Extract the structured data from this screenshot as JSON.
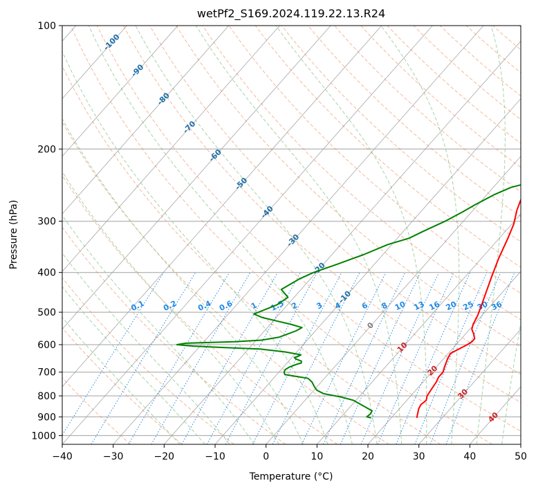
{
  "chart_data": {
    "type": "line",
    "title": "wetPf2_S169.2024.119.22.13.R24",
    "xlabel": "Temperature (°C)",
    "ylabel": "Pressure (hPa)",
    "xlim": [
      -40,
      50
    ],
    "ylim": [
      1050,
      100
    ],
    "yscale": "log",
    "x_ticks": [
      -40,
      -30,
      -20,
      -10,
      0,
      10,
      20,
      30,
      40,
      50
    ],
    "y_ticks": [
      100,
      200,
      300,
      400,
      500,
      600,
      700,
      800,
      900,
      1000
    ],
    "grid": true,
    "series": [
      {
        "color": "#ff0000",
        "points": [
          [
            25,
            905
          ],
          [
            24.6,
            890
          ],
          [
            23.8,
            860
          ],
          [
            23.5,
            840
          ],
          [
            23.8,
            820
          ],
          [
            23.2,
            800
          ],
          [
            22.8,
            760
          ],
          [
            22.6,
            740
          ],
          [
            22.2,
            720
          ],
          [
            22.2,
            700
          ],
          [
            21.6,
            680
          ],
          [
            20.8,
            650
          ],
          [
            20.4,
            630
          ],
          [
            21.3,
            615
          ],
          [
            22.2,
            600
          ],
          [
            22.6,
            590
          ],
          [
            22.6,
            580
          ],
          [
            21.6,
            565
          ],
          [
            20.4,
            550
          ],
          [
            19.8,
            535
          ],
          [
            19.2,
            510
          ],
          [
            18.3,
            485
          ],
          [
            16.5,
            440
          ],
          [
            15.2,
            410
          ],
          [
            13.4,
            370
          ],
          [
            11.7,
            330
          ],
          [
            10.4,
            305
          ],
          [
            8.6,
            282
          ],
          [
            7.3,
            262
          ],
          [
            6.8,
            245
          ],
          [
            6.9,
            228
          ],
          [
            7.1,
            215
          ],
          [
            6.8,
            200
          ],
          [
            6.2,
            190
          ],
          [
            5.2,
            180
          ],
          [
            3.6,
            165
          ],
          [
            2.0,
            150
          ],
          [
            0.5,
            140
          ],
          [
            -0.7,
            130
          ],
          [
            -0.9,
            125
          ],
          [
            -0.4,
            120
          ],
          [
            0.8,
            115
          ],
          [
            3.0,
            111
          ],
          [
            5.8,
            107
          ],
          [
            7.2,
            104
          ],
          [
            8.9,
            101
          ],
          [
            9.5,
            100
          ]
        ]
      },
      {
        "color": "#008000",
        "points": [
          [
            16,
            905
          ],
          [
            15,
            900
          ],
          [
            15.2,
            885
          ],
          [
            15,
            870
          ],
          [
            12.3,
            845
          ],
          [
            9.5,
            820
          ],
          [
            6.5,
            805
          ],
          [
            2.5,
            790
          ],
          [
            0.6,
            775
          ],
          [
            -0.5,
            760
          ],
          [
            -1.8,
            740
          ],
          [
            -3.2,
            725
          ],
          [
            -4.9,
            720
          ],
          [
            -8.4,
            710
          ],
          [
            -9.0,
            700
          ],
          [
            -9.2,
            690
          ],
          [
            -8.8,
            680
          ],
          [
            -7.9,
            670
          ],
          [
            -7.2,
            665
          ],
          [
            -7.5,
            658
          ],
          [
            -9.0,
            650
          ],
          [
            -9.5,
            645
          ],
          [
            -8.9,
            640
          ],
          [
            -8.7,
            635
          ],
          [
            -12.3,
            625
          ],
          [
            -17.6,
            615
          ],
          [
            -24.8,
            610
          ],
          [
            -31.3,
            605
          ],
          [
            -34.8,
            600
          ],
          [
            -33.3,
            595
          ],
          [
            -24.0,
            590
          ],
          [
            -19.0,
            585
          ],
          [
            -16.0,
            575
          ],
          [
            -13.8,
            555
          ],
          [
            -13.2,
            545
          ],
          [
            -16.0,
            535
          ],
          [
            -19.4,
            525
          ],
          [
            -22.8,
            515
          ],
          [
            -25.0,
            505
          ],
          [
            -22.1,
            480
          ],
          [
            -21.2,
            460
          ],
          [
            -23.9,
            440
          ],
          [
            -22.2,
            415
          ],
          [
            -20.5,
            400
          ],
          [
            -17.3,
            382
          ],
          [
            -13.8,
            362
          ],
          [
            -10.8,
            342
          ],
          [
            -7.7,
            330
          ],
          [
            -6.2,
            318
          ],
          [
            -3.6,
            300
          ],
          [
            -1.8,
            285
          ],
          [
            -0.6,
            274
          ],
          [
            1.5,
            258
          ],
          [
            3.5,
            248
          ],
          [
            5.6,
            243
          ],
          [
            6.5,
            235
          ],
          [
            6.5,
            228
          ],
          [
            5.6,
            210
          ],
          [
            4.6,
            196
          ],
          [
            3.0,
            180
          ],
          [
            0.7,
            163
          ],
          [
            -1.8,
            146
          ],
          [
            -1.3,
            138
          ],
          [
            -1.1,
            132
          ],
          [
            -0.3,
            124
          ],
          [
            0.1,
            120
          ],
          [
            0.7,
            112
          ],
          [
            0.9,
            105
          ],
          [
            1.1,
            100
          ]
        ]
      }
    ],
    "temperature_line_labels": [
      "-100",
      "-90",
      "-80",
      "-70",
      "-60",
      "-50",
      "-40",
      "-30",
      "-20",
      "-10",
      "0",
      "10",
      "20",
      "30",
      "40"
    ],
    "mixing_ratio_labels": [
      "0.1",
      "0.2",
      "0.4",
      "0.6",
      "1",
      "1.5",
      "2",
      "3",
      "4",
      "6",
      "8",
      "10",
      "13",
      "16",
      "20",
      "25",
      "30",
      "36"
    ],
    "colors": {
      "temperature": "#ff0000",
      "dewpoint": "#008000",
      "isotherm": "#808080",
      "dry_adiabat": "#f0a07a",
      "moist_adiabat": "#90c890",
      "mixing_ratio": "#1e88e5",
      "label_cold": "#1f6faa",
      "label_warm": "#cc2222",
      "label_zero": "#808080"
    }
  }
}
